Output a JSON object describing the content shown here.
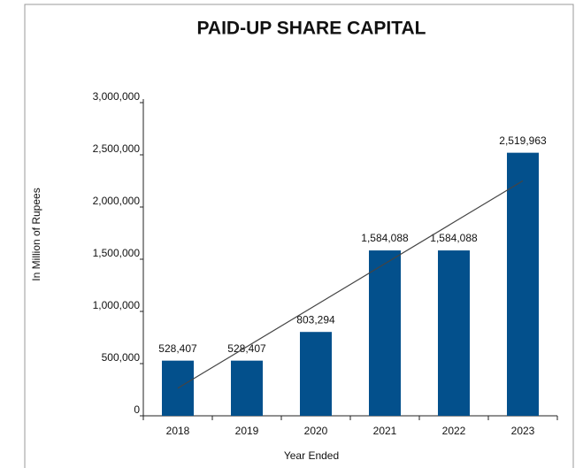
{
  "chart_data": {
    "type": "bar",
    "title": "PAID-UP SHARE CAPITAL",
    "x_label": "Year Ended",
    "y_label": "In Million of Rupees",
    "categories": [
      "2018",
      "2019",
      "2020",
      "2021",
      "2022",
      "2023"
    ],
    "values": [
      528407,
      528407,
      803294,
      1584088,
      1584088,
      2519963
    ],
    "value_labels": [
      "528,407",
      "528,407",
      "803,294",
      "1,584,088",
      "1,584,088",
      "2,519,963"
    ],
    "color": "#03508c",
    "ylim": [
      0,
      3000000
    ],
    "yticks": [
      0,
      {
        "value": 500000,
        "label": "500,000"
      },
      {
        "value": 1000000,
        "label": "1,000,000"
      },
      {
        "value": 1500000,
        "label": "1,500,000"
      },
      {
        "value": 2000000,
        "label": "2,000,000"
      },
      {
        "value": 2500000,
        "label": "2,500,000"
      },
      {
        "value": 3000000,
        "label": "3,000,000"
      }
    ],
    "trendline": true,
    "grid": false
  }
}
